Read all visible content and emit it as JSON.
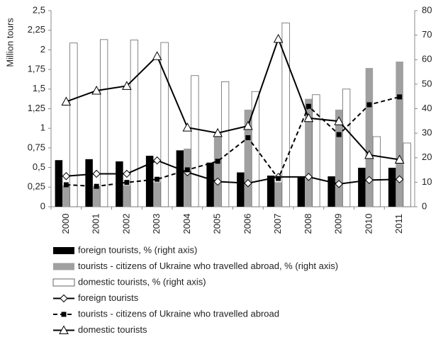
{
  "chart_data": {
    "type": "combo",
    "ylabel": "Million tours",
    "categories": [
      "2000",
      "2001",
      "2002",
      "2003",
      "2004",
      "2005",
      "2006",
      "2007",
      "2008",
      "2009",
      "2010",
      "2011"
    ],
    "ylim": [
      0,
      2.5
    ],
    "yticks": [
      0,
      {
        "value": 0.25,
        "label": "0,25"
      },
      {
        "value": 0.5,
        "label": "0,5"
      },
      {
        "value": 0.75,
        "label": "0,75"
      },
      1,
      {
        "value": 1.25,
        "label": "1,25"
      },
      {
        "value": 1.5,
        "label": "1,5"
      },
      {
        "value": 1.75,
        "label": "1,75"
      },
      2,
      {
        "value": 2.25,
        "label": "2,25"
      },
      {
        "value": 2.5,
        "label": "2,5"
      }
    ],
    "y2lim": [
      0,
      80
    ],
    "y2ticks": [
      0,
      10,
      20,
      30,
      40,
      50,
      60,
      70,
      80
    ],
    "series": [
      {
        "name": "foreign tourists, % (right axis)",
        "type": "bar",
        "axis": "y2",
        "color": "#000000",
        "values": [
          19,
          19.4,
          18.5,
          20.8,
          23,
          18,
          14,
          12.7,
          12,
          12.4,
          15.9,
          15.9
        ]
      },
      {
        "name": "tourists - citizens of Ukraine who travelled abroad, % (right axis)",
        "type": "bar",
        "axis": "y2",
        "color": "#a0a0a0",
        "values": [
          8.7,
          8.4,
          8.7,
          10,
          23.7,
          29.5,
          39.6,
          10,
          44,
          39.6,
          56.6,
          59.2
        ]
      },
      {
        "name": "domestic tourists, % (right axis)",
        "type": "bar",
        "axis": "y2",
        "color": "#ffffff",
        "values": [
          66.8,
          68.2,
          68,
          67,
          53.5,
          51,
          47,
          75,
          45.7,
          48,
          28.6,
          26
        ]
      },
      {
        "name": "foreign tourists",
        "type": "line",
        "color": "#000000",
        "marker": "diamond",
        "dashed": false,
        "values": [
          0.39,
          0.42,
          0.42,
          0.59,
          0.44,
          0.32,
          0.3,
          0.38,
          0.38,
          0.29,
          0.34,
          0.35
        ]
      },
      {
        "name": "tourists - citizens of Ukraine who travelled abroad",
        "type": "line",
        "color": "#000000",
        "marker": "square",
        "dashed": true,
        "values": [
          0.28,
          0.26,
          0.31,
          0.35,
          0.47,
          0.58,
          0.88,
          0.36,
          1.28,
          0.92,
          1.3,
          1.4
        ]
      },
      {
        "name": "domestic tourists",
        "type": "line",
        "color": "#000000",
        "marker": "triangle",
        "dashed": false,
        "values": [
          1.34,
          1.48,
          1.54,
          1.92,
          1.01,
          0.94,
          1.03,
          2.14,
          1.13,
          1.09,
          0.66,
          0.6
        ]
      }
    ]
  }
}
